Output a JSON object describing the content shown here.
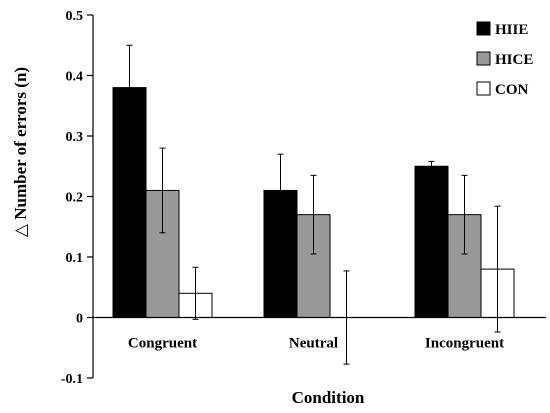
{
  "chart_data": {
    "type": "bar",
    "categories": [
      "Congruent",
      "Neutral",
      "Incongruent"
    ],
    "series": [
      {
        "name": "HIIE",
        "values": [
          0.38,
          0.21,
          0.25
        ],
        "errors": [
          0.07,
          0.06,
          0.008
        ],
        "color": "#000000"
      },
      {
        "name": "HICE",
        "values": [
          0.21,
          0.17,
          0.17
        ],
        "errors": [
          0.07,
          0.065,
          0.065
        ],
        "color": "#999999"
      },
      {
        "name": "CON",
        "values": [
          0.04,
          0.0,
          0.08
        ],
        "errors": [
          0.043,
          0.077,
          0.104
        ],
        "color": "#ffffff"
      }
    ],
    "xlabel": "Condition",
    "ylabel": "△ Number of errors (n)",
    "ylim": [
      -0.1,
      0.5
    ],
    "yticks": [
      "-0.1",
      "0",
      "0.1",
      "0.2",
      "0.3",
      "0.4",
      "0.5"
    ],
    "grid": false,
    "legend_position": "top-right"
  }
}
